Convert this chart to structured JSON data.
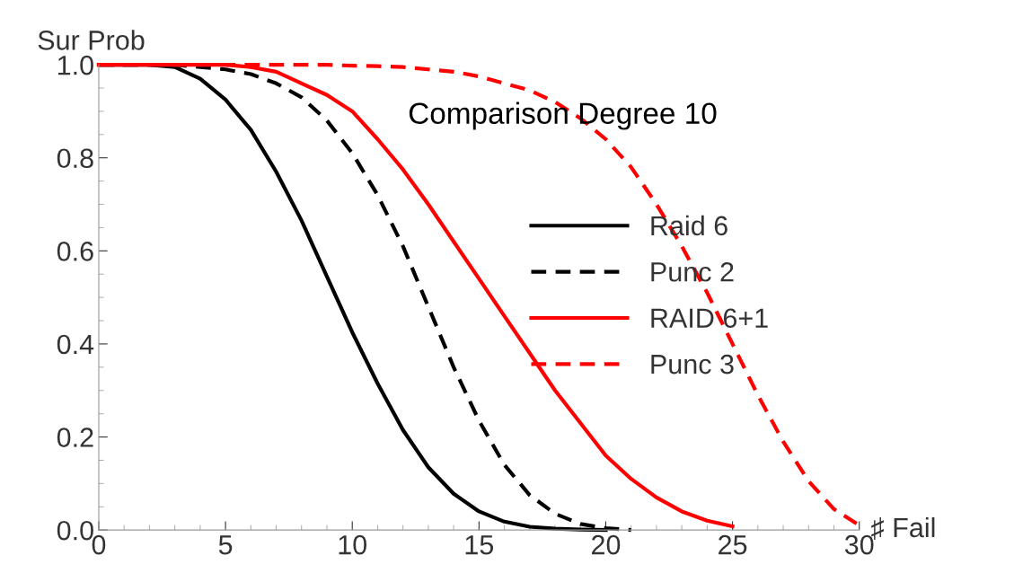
{
  "chart_data": {
    "type": "line",
    "title": "Comparison Degree 10",
    "xlabel": "♯ Fail",
    "ylabel": "Sur Prob",
    "x": [
      0,
      1,
      2,
      3,
      4,
      5,
      6,
      7,
      8,
      9,
      10,
      11,
      12,
      13,
      14,
      15,
      16,
      17,
      18,
      19,
      20,
      21,
      22,
      23,
      24,
      25,
      26,
      27,
      28,
      29,
      30
    ],
    "series": [
      {
        "name": "Raid 6",
        "color": "#000000",
        "line_style": "solid",
        "values": [
          1,
          1,
          1,
          0.995,
          0.97,
          0.925,
          0.86,
          0.77,
          0.665,
          0.545,
          0.425,
          0.315,
          0.215,
          0.135,
          0.078,
          0.04,
          0.018,
          0.007,
          0.003,
          0.001,
          0.0,
          null,
          null,
          null,
          null,
          null,
          null,
          null,
          null,
          null,
          null
        ]
      },
      {
        "name": "Punc 2",
        "color": "#000000",
        "line_style": "dashed",
        "values": [
          1,
          1,
          1,
          1,
          0.995,
          0.99,
          0.98,
          0.96,
          0.93,
          0.88,
          0.81,
          0.72,
          0.61,
          0.48,
          0.35,
          0.235,
          0.14,
          0.075,
          0.035,
          0.013,
          0.004,
          0.0,
          null,
          null,
          null,
          null,
          null,
          null,
          null,
          null,
          null
        ]
      },
      {
        "name": "RAID 6+1",
        "color": "#ff0000",
        "line_style": "solid",
        "values": [
          1,
          1,
          1,
          1,
          1,
          1,
          0.995,
          0.985,
          0.96,
          0.935,
          0.9,
          0.84,
          0.775,
          0.7,
          0.62,
          0.54,
          0.46,
          0.38,
          0.3,
          0.23,
          0.16,
          0.11,
          0.07,
          0.04,
          0.02,
          0.008,
          null,
          null,
          null,
          null,
          null
        ]
      },
      {
        "name": "Punc 3",
        "color": "#ff0000",
        "line_style": "dashed",
        "values": [
          1,
          1,
          1,
          1,
          1,
          1,
          1,
          1,
          1,
          1,
          0.998,
          0.997,
          0.995,
          0.99,
          0.985,
          0.975,
          0.96,
          0.945,
          0.92,
          0.885,
          0.84,
          0.78,
          0.7,
          0.61,
          0.51,
          0.4,
          0.29,
          0.19,
          0.105,
          0.045,
          0.01
        ]
      }
    ],
    "xlim": [
      0,
      30
    ],
    "ylim": [
      0,
      1
    ],
    "xticks": [
      0,
      5,
      10,
      15,
      20,
      25,
      30
    ],
    "yticks": [
      {
        "value": 0,
        "label": "0.0"
      },
      {
        "value": 0.2,
        "label": "0.2"
      },
      {
        "value": 0.4,
        "label": "0.4"
      },
      {
        "value": 0.6,
        "label": "0.6"
      },
      {
        "value": 0.8,
        "label": "0.8"
      },
      {
        "value": 1,
        "label": "1.0"
      }
    ],
    "grid": false,
    "legend": "center",
    "marker": "none"
  }
}
